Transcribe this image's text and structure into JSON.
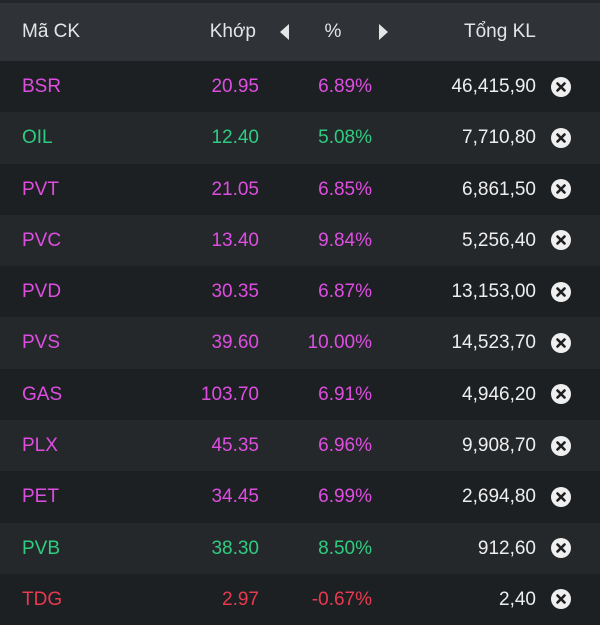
{
  "colors": {
    "ceiling": "#dd4ee0",
    "up": "#2ecc80",
    "down": "#e8394f",
    "text": "#eeeeee"
  },
  "header": {
    "symbol": "Mã CK",
    "price": "Khớp",
    "prev_icon": "caret-left-icon",
    "pct": "%",
    "next_icon": "caret-right-icon",
    "volume": "Tổng KL"
  },
  "rows": [
    {
      "symbol": "BSR",
      "price": "20.95",
      "pct": "6.89%",
      "volume": "46,415,90",
      "status": "ceiling"
    },
    {
      "symbol": "OIL",
      "price": "12.40",
      "pct": "5.08%",
      "volume": "7,710,80",
      "status": "up"
    },
    {
      "symbol": "PVT",
      "price": "21.05",
      "pct": "6.85%",
      "volume": "6,861,50",
      "status": "ceiling"
    },
    {
      "symbol": "PVC",
      "price": "13.40",
      "pct": "9.84%",
      "volume": "5,256,40",
      "status": "ceiling"
    },
    {
      "symbol": "PVD",
      "price": "30.35",
      "pct": "6.87%",
      "volume": "13,153,00",
      "status": "ceiling"
    },
    {
      "symbol": "PVS",
      "price": "39.60",
      "pct": "10.00%",
      "volume": "14,523,70",
      "status": "ceiling"
    },
    {
      "symbol": "GAS",
      "price": "103.70",
      "pct": "6.91%",
      "volume": "4,946,20",
      "status": "ceiling"
    },
    {
      "symbol": "PLX",
      "price": "45.35",
      "pct": "6.96%",
      "volume": "9,908,70",
      "status": "ceiling"
    },
    {
      "symbol": "PET",
      "price": "34.45",
      "pct": "6.99%",
      "volume": "2,694,80",
      "status": "ceiling"
    },
    {
      "symbol": "PVB",
      "price": "38.30",
      "pct": "8.50%",
      "volume": "912,60",
      "status": "up"
    },
    {
      "symbol": "TDG",
      "price": "2.97",
      "pct": "-0.67%",
      "volume": "2,40",
      "status": "down"
    }
  ]
}
